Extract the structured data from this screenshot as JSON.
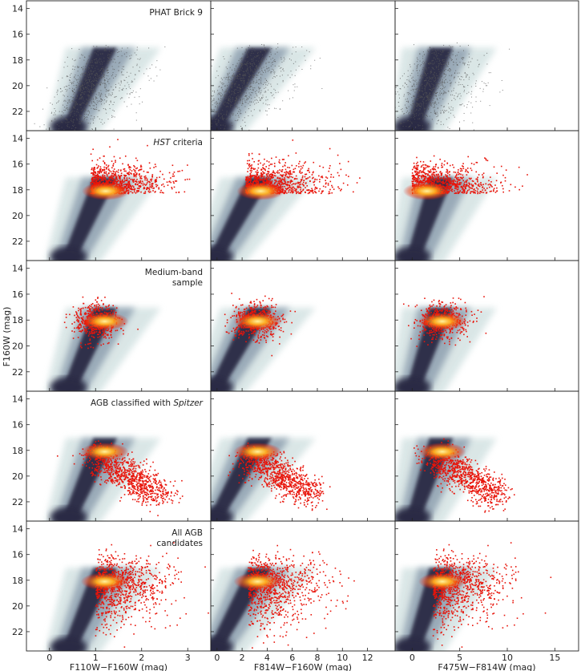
{
  "chart_data": {
    "type": "scatter",
    "description_layout": "grid",
    "ylabel": "F160W (mag)",
    "ylim": [
      23.5,
      13.4
    ],
    "yticks": [
      14,
      16,
      18,
      20,
      22
    ],
    "columns": [
      {
        "xlabel": "F110W−F160W (mag)",
        "xlim": [
          -0.5,
          3.5
        ],
        "xticks": [
          0,
          1,
          2,
          3
        ]
      },
      {
        "xlabel": "F814W−F160W (mag)",
        "xlim": [
          -0.5,
          14.2
        ],
        "xticks": [
          0,
          2,
          4,
          6,
          8,
          10,
          12
        ]
      },
      {
        "xlabel": "F475W−F814W (mag)",
        "xlim": [
          -1.8,
          17.5
        ],
        "xticks": [
          0,
          5,
          10,
          15
        ]
      }
    ],
    "rows": [
      {
        "id": "phat",
        "annotation_lines": [
          "PHAT Brick 9"
        ],
        "annotation_italic": []
      },
      {
        "id": "hst",
        "annotation_lines": [
          "HST criteria"
        ],
        "annotation_italic": [
          "HST"
        ]
      },
      {
        "id": "medium",
        "annotation_lines": [
          "Medium-band",
          "sample"
        ],
        "annotation_italic": []
      },
      {
        "id": "spitzer",
        "annotation_lines": [
          "AGB classified with Spitzer"
        ],
        "annotation_italic": [
          "Spitzer"
        ]
      },
      {
        "id": "all",
        "annotation_lines": [
          "All AGB",
          "candidates"
        ],
        "annotation_italic": []
      }
    ],
    "features": {
      "rgb_tip_mag": 18.3,
      "rgb_color": [
        1.0,
        2.5,
        2.2
      ],
      "hst_color_cut": [
        0.9,
        2.3,
        0.0
      ],
      "colors": {
        "density_dark": "#2a2a44",
        "density_mid": "#8fa0b0",
        "density_light": "#d6e4e4",
        "points_gray": "#555555",
        "points_red": "#e8140a",
        "points_yellow": "#ffd24a"
      }
    }
  }
}
